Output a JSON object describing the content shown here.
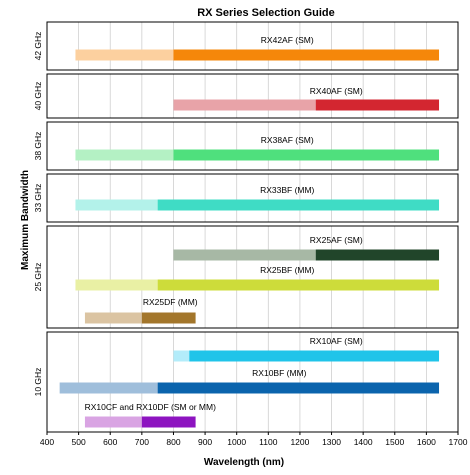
{
  "chart_data": {
    "type": "bar",
    "orientation": "horizontal-range",
    "title": "RX Series Selection Guide",
    "xlabel": "Wavelength (nm)",
    "ylabel": "Maximum Bandwidth",
    "xlim": [
      400,
      1700
    ],
    "x_ticks": [
      400,
      500,
      600,
      700,
      800,
      900,
      1000,
      1100,
      1200,
      1300,
      1400,
      1500,
      1600,
      1700
    ],
    "grid": true,
    "groups": [
      {
        "label": "42 GHz",
        "bars": [
          {
            "name": "RX42AF (SM)",
            "light_range": [
              490,
              800
            ],
            "dark_range": [
              800,
              1640
            ],
            "light_color": "#fcd09f",
            "dark_color": "#f5870a"
          }
        ]
      },
      {
        "label": "40 GHz",
        "bars": [
          {
            "name": "RX40AF (SM)",
            "light_range": [
              800,
              1250
            ],
            "dark_range": [
              1250,
              1640
            ],
            "light_color": "#e8a3a8",
            "dark_color": "#d32630"
          }
        ]
      },
      {
        "label": "38 GHz",
        "bars": [
          {
            "name": "RX38AF (SM)",
            "light_range": [
              490,
              800
            ],
            "dark_range": [
              800,
              1640
            ],
            "light_color": "#b4f1c4",
            "dark_color": "#4fe07d"
          }
        ]
      },
      {
        "label": "33 GHz",
        "bars": [
          {
            "name": "RX33BF (MM)",
            "light_range": [
              490,
              750
            ],
            "dark_range": [
              750,
              1640
            ],
            "light_color": "#b3f2ea",
            "dark_color": "#3fdcc5"
          }
        ]
      },
      {
        "label": "25 GHz",
        "bars": [
          {
            "name": "RX25AF (SM)",
            "light_range": [
              800,
              1250
            ],
            "dark_range": [
              1250,
              1640
            ],
            "light_color": "#a7b8a5",
            "dark_color": "#21452a"
          },
          {
            "name": "RX25BF (MM)",
            "light_range": [
              490,
              750
            ],
            "dark_range": [
              750,
              1640
            ],
            "light_color": "#e9f0a4",
            "dark_color": "#cddc3a"
          },
          {
            "name": "RX25DF (MM)",
            "light_range": [
              520,
              700
            ],
            "dark_range": [
              700,
              870
            ],
            "light_color": "#dbc4a2",
            "dark_color": "#a3762b"
          }
        ]
      },
      {
        "label": "10 GHz",
        "bars": [
          {
            "name": "RX10AF (SM)",
            "light_range": [
              800,
              850
            ],
            "dark_range": [
              850,
              1640
            ],
            "light_color": "#b3ecfa",
            "dark_color": "#20c4e9"
          },
          {
            "name": "RX10BF (MM)",
            "light_range": [
              440,
              750
            ],
            "dark_range": [
              750,
              1640
            ],
            "light_color": "#9fbedb",
            "dark_color": "#0b64ad"
          },
          {
            "name": "RX10CF and RX10DF (SM or MM)",
            "light_range": [
              520,
              700
            ],
            "dark_range": [
              700,
              870
            ],
            "light_color": "#d9a4e3",
            "dark_color": "#8d14c0"
          }
        ]
      }
    ]
  }
}
